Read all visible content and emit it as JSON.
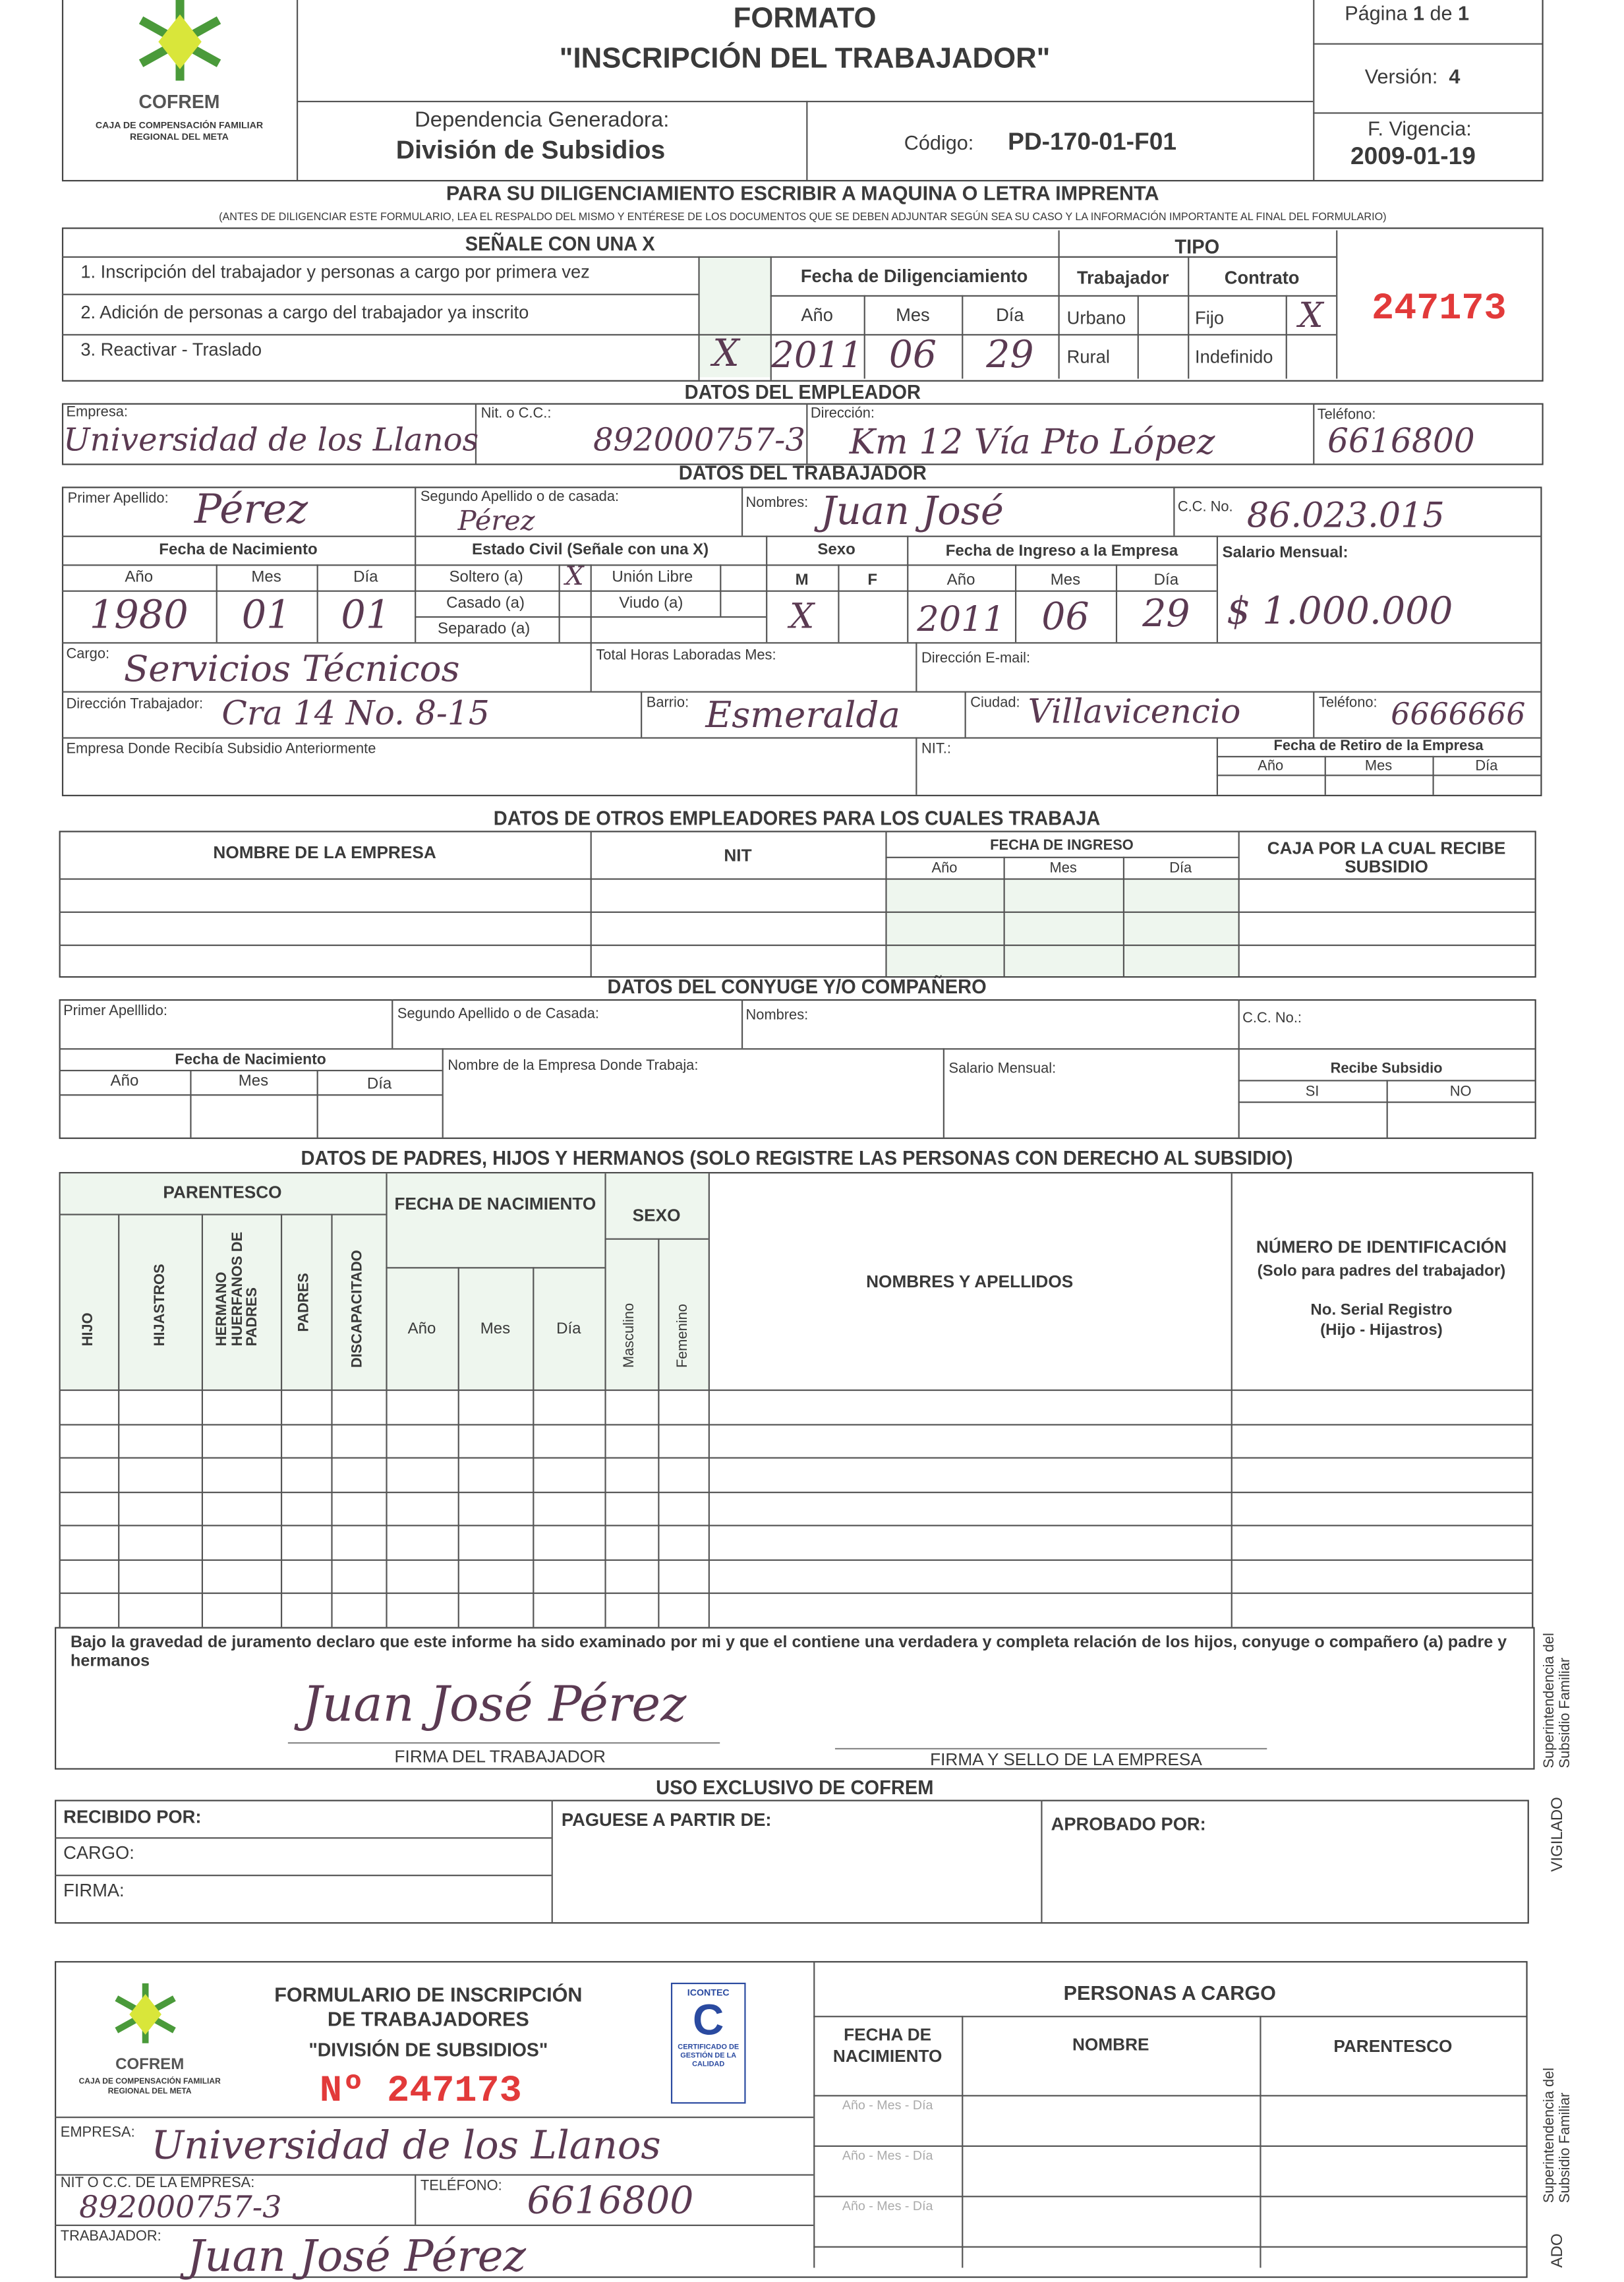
{
  "colors": {
    "ink": "#5b3a52",
    "serial": "#e23a3a",
    "logo_green": "#4a9a3a",
    "logo_yellow": "#d9e63a",
    "icontec_blue": "#2a4aa0"
  },
  "header": {
    "logo_name": "COFREM",
    "logo_sub1": "CAJA DE COMPENSACIÓN FAMILIAR",
    "logo_sub2": "REGIONAL DEL META",
    "title1": "FORMATO",
    "title2": "\"INSCRIPCIÓN DEL TRABAJADOR\"",
    "pagina_label": "Página",
    "pagina": "1",
    "de": "de",
    "pagina_total": "1",
    "version_label": "Versión:",
    "version": "4",
    "dep_label": "Dependencia Generadora:",
    "dep": "División de Subsidios",
    "codigo_label": "Código:",
    "codigo": "PD-170-01-F01",
    "vigencia_label": "F. Vigencia:",
    "vigencia": "2009-01-19"
  },
  "instructions": {
    "main": "PARA SU DILIGENCIAMIENTO ESCRIBIR A MAQUINA O LETRA IMPRENTA",
    "sub": "(ANTES DE DILIGENCIAR ESTE FORMULARIO, LEA EL RESPALDO DEL MISMO Y ENTÉRESE DE LOS DOCUMENTOS QUE SE DEBEN ADJUNTAR SEGÚN SEA SU CASO Y LA INFORMACIÓN IMPORTANTE AL FINAL DEL FORMULARIO)"
  },
  "senale": {
    "title": "SEÑALE CON UNA X",
    "options": [
      "1. Inscripción del trabajador y personas a cargo por primera vez",
      "2. Adición de personas a cargo del trabajador ya inscrito",
      "3. Reactivar - Traslado"
    ],
    "option3_mark": "X",
    "fecha_label": "Fecha de Diligenciamiento",
    "ano": "Año",
    "mes": "Mes",
    "dia": "Día",
    "ano_val": "2011",
    "mes_val": "06",
    "dia_val": "29",
    "tipo": "TIPO",
    "trabajador": "Trabajador",
    "contrato": "Contrato",
    "urbano": "Urbano",
    "rural": "Rural",
    "fijo": "Fijo",
    "indefinido": "Indefinido",
    "fijo_mark": "X",
    "serial": "247173"
  },
  "employer": {
    "title": "DATOS DEL EMPLEADOR",
    "empresa_label": "Empresa:",
    "empresa": "Universidad de los Llanos",
    "nit_label": "Nit. o C.C.:",
    "nit": "892000757-3",
    "direccion_label": "Dirección:",
    "direccion": "Km 12 Vía Pto López",
    "telefono_label": "Teléfono:",
    "telefono": "6616800"
  },
  "worker": {
    "title": "DATOS DEL TRABAJADOR",
    "primer_label": "Primer Apellido:",
    "primer": "Pérez",
    "segundo_label": "Segundo Apellido o de casada:",
    "segundo": "Pérez",
    "nombres_label": "Nombres:",
    "nombres": "Juan José",
    "cc_label": "C.C. No.",
    "cc": "86.023.015",
    "nac_label": "Fecha de Nacimiento",
    "ano": "Año",
    "mes": "Mes",
    "dia": "Día",
    "nac_ano": "1980",
    "nac_mes": "01",
    "nac_dia": "01",
    "civil_label": "Estado Civil (Señale con una X)",
    "soltero": "Soltero (a)",
    "soltero_mark": "X",
    "union": "Unión Libre",
    "casado": "Casado (a)",
    "viudo": "Viudo (a)",
    "separado": "Separado (a)",
    "sexo_label": "Sexo",
    "m": "M",
    "f": "F",
    "sexo_mark": "X",
    "ingreso_label": "Fecha de Ingreso a la Empresa",
    "ing_ano": "2011",
    "ing_mes": "06",
    "ing_dia": "29",
    "salario_label": "Salario Mensual:",
    "salario": "$ 1.000.000",
    "cargo_label": "Cargo:",
    "cargo": "Servicios Técnicos",
    "horas_label": "Total Horas Laboradas Mes:",
    "email_label": "Dirección E-mail:",
    "dir_label": "Dirección Trabajador:",
    "dir": "Cra 14 No. 8-15",
    "barrio_label": "Barrio:",
    "barrio": "Esmeralda",
    "ciudad_label": "Ciudad:",
    "ciudad": "Villavicencio",
    "tel_label": "Teléfono:",
    "tel": "6666666",
    "anterior_label": "Empresa Donde Recibía Subsidio Anteriormente",
    "nit_label": "NIT.:",
    "retiro_label": "Fecha de Retiro de la Empresa"
  },
  "otros": {
    "title": "DATOS DE OTROS EMPLEADORES PARA LOS CUALES TRABAJA",
    "nombre": "NOMBRE DE LA EMPRESA",
    "nit": "NIT",
    "fecha": "FECHA DE INGRESO",
    "ano": "Año",
    "mes": "Mes",
    "dia": "Día",
    "caja": "CAJA POR LA CUAL RECIBE SUBSIDIO"
  },
  "conyuge": {
    "title": "DATOS DEL CONYUGE Y/O COMPAÑERO",
    "primer": "Primer Apelllido:",
    "segundo": "Segundo Apellido o de Casada:",
    "nombres": "Nombres:",
    "cc": "C.C. No.:",
    "nac": "Fecha de Nacimiento",
    "ano": "Año",
    "mes": "Mes",
    "dia": "Día",
    "empresa": "Nombre de la Empresa Donde Trabaja:",
    "salario": "Salario Mensual:",
    "recibe": "Recibe Subsidio",
    "si": "SI",
    "no": "NO"
  },
  "padres": {
    "title": "DATOS DE PADRES, HIJOS Y HERMANOS (SOLO REGISTRE LAS PERSONAS CON DERECHO AL SUBSIDIO)",
    "parentesco": "PARENTESCO",
    "hijo": "HIJO",
    "hijastros": "HIJASTROS",
    "hermano": "HERMANO HUERFANOS DE PADRES",
    "padres": "PADRES",
    "discapacitado": "DISCAPACITADO",
    "fecha": "FECHA DE NACIMIENTO",
    "ano": "Año",
    "mes": "Mes",
    "dia": "Día",
    "sexo": "SEXO",
    "masculino": "Masculino",
    "femenino": "Femenino",
    "nombres": "NOMBRES Y APELLIDOS",
    "numero": "NÚMERO DE IDENTIFICACIÓN",
    "numero_sub": "(Solo para padres del trabajador)",
    "serial": "No. Serial Registro",
    "serial_sub": "(Hijo - Hijastros)"
  },
  "declaracion": {
    "text": "Bajo la gravedad de juramento declaro que este informe ha sido examinado por mi y que el contiene una verdadera y completa relación de los hijos, conyuge o compañero (a) padre y hermanos",
    "firma": "Juan José Pérez",
    "firma_label": "FIRMA DEL TRABAJADOR",
    "sello_label": "FIRMA Y SELLO DE LA EMPRESA"
  },
  "uso": {
    "title": "USO EXCLUSIVO DE COFREM",
    "recibido": "RECIBIDO POR:",
    "cargo": "CARGO:",
    "firma": "FIRMA:",
    "paguese": "PAGUESE A PARTIR DE:",
    "aprobado": "APROBADO POR:"
  },
  "side": {
    "super": "Superintendencia del Subsidio Familiar",
    "vigilado": "VIGILADO",
    "vigilado_cut": "ADO"
  },
  "stub": {
    "title1": "FORMULARIO DE INSCRIPCIÓN",
    "title2": "DE TRABAJADORES",
    "title3": "\"DIVISIÓN DE SUBSIDIOS\"",
    "numero": "Nº 247173",
    "icontec": "ICONTEC",
    "icontec_cert": "CERTIFICADO DE GESTIÓN DE LA CALIDAD",
    "empresa_label": "EMPRESA:",
    "empresa": "Universidad de los Llanos",
    "nit_label": "NIT O C.C. DE LA EMPRESA:",
    "nit": "892000757-3",
    "tel_label": "TELÉFONO:",
    "tel": "6616800",
    "trabajador_label": "TRABAJADOR:",
    "trabajador": "Juan José Pérez",
    "personas": "PERSONAS A CARGO",
    "fecha": "FECHA DE NACIMIENTO",
    "nombre": "NOMBRE",
    "parentesco": "PARENTESCO",
    "fecha_fmt": "Año - Mes - Día"
  }
}
